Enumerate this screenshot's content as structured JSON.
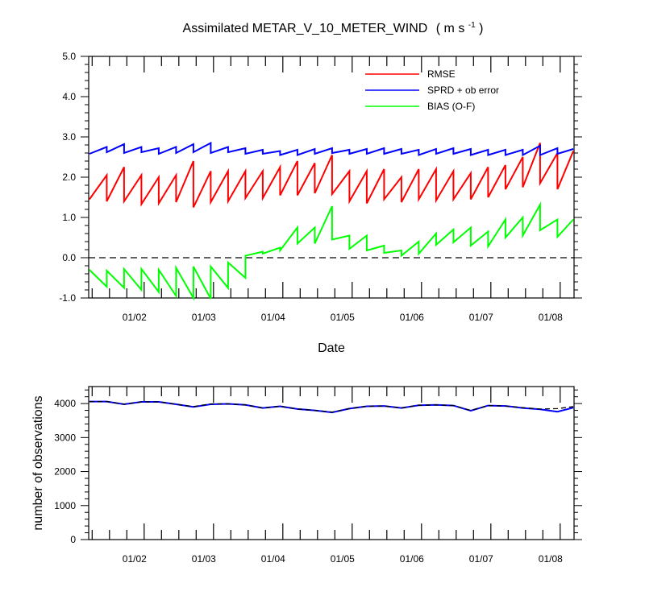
{
  "chart_data": [
    {
      "type": "line",
      "title": "Assimilated METAR_V_10_METER_WIND",
      "title_units": "( m s",
      "title_units_sup": "-1",
      "title_units_close": " )",
      "xlabel": "Date",
      "ylabel": "",
      "ylim": [
        -1.0,
        5.0
      ],
      "yticks": [
        -1.0,
        0.0,
        1.0,
        2.0,
        3.0,
        4.0,
        5.0
      ],
      "ytick_labels": [
        "-1.0",
        "0.0",
        "1.0",
        "2.0",
        "3.0",
        "4.0",
        "5.0"
      ],
      "xlim": [
        1.2,
        8.2
      ],
      "xticks": [
        2,
        3,
        4,
        5,
        6,
        7,
        8
      ],
      "xtick_labels": [
        "01/02",
        "01/03",
        "01/04",
        "01/05",
        "01/06",
        "01/07",
        "01/08"
      ],
      "grid": false,
      "legend_position": "top-right",
      "reference_line": 0.0,
      "series": [
        {
          "name": "RMSE",
          "color": "#ff0000",
          "x": [
            1.21,
            1.46,
            1.46,
            1.71,
            1.71,
            1.96,
            1.96,
            2.21,
            2.21,
            2.46,
            2.46,
            2.71,
            2.71,
            2.96,
            2.96,
            3.21,
            3.21,
            3.46,
            3.46,
            3.71,
            3.71,
            3.96,
            3.96,
            4.21,
            4.21,
            4.46,
            4.46,
            4.71,
            4.71,
            4.96,
            4.96,
            5.21,
            5.21,
            5.46,
            5.46,
            5.71,
            5.71,
            5.96,
            5.96,
            6.21,
            6.21,
            6.46,
            6.46,
            6.71,
            6.71,
            6.96,
            6.96,
            7.21,
            7.21,
            7.46,
            7.46,
            7.71,
            7.71,
            7.96,
            7.96,
            8.19
          ],
          "y": [
            1.45,
            2.05,
            1.4,
            2.25,
            1.4,
            2.05,
            1.33,
            2.0,
            1.35,
            2.05,
            1.38,
            2.4,
            1.25,
            2.15,
            1.38,
            2.15,
            1.4,
            2.15,
            1.48,
            2.15,
            1.48,
            2.25,
            1.55,
            2.4,
            1.55,
            2.35,
            1.6,
            2.55,
            1.58,
            2.15,
            1.4,
            2.15,
            1.35,
            2.2,
            1.45,
            2.0,
            1.38,
            2.2,
            1.45,
            2.2,
            1.42,
            2.15,
            1.45,
            2.1,
            1.45,
            2.25,
            1.5,
            2.3,
            1.7,
            2.5,
            1.75,
            2.85,
            1.85,
            2.6,
            1.7,
            2.65
          ]
        },
        {
          "name": "SPRD + ob error",
          "color": "#0000ff",
          "x": [
            1.21,
            1.46,
            1.46,
            1.71,
            1.71,
            1.96,
            1.96,
            2.21,
            2.21,
            2.46,
            2.46,
            2.71,
            2.71,
            2.96,
            2.96,
            3.21,
            3.21,
            3.46,
            3.46,
            3.71,
            3.71,
            3.96,
            3.96,
            4.21,
            4.21,
            4.46,
            4.46,
            4.71,
            4.71,
            4.96,
            4.96,
            5.21,
            5.21,
            5.46,
            5.46,
            5.71,
            5.71,
            5.96,
            5.96,
            6.21,
            6.21,
            6.46,
            6.46,
            6.71,
            6.71,
            6.96,
            6.96,
            7.21,
            7.21,
            7.46,
            7.46,
            7.71,
            7.71,
            7.96,
            7.96,
            8.19
          ],
          "y": [
            2.58,
            2.75,
            2.62,
            2.82,
            2.6,
            2.75,
            2.62,
            2.72,
            2.58,
            2.75,
            2.6,
            2.82,
            2.62,
            2.85,
            2.6,
            2.75,
            2.62,
            2.72,
            2.58,
            2.68,
            2.58,
            2.65,
            2.55,
            2.68,
            2.55,
            2.7,
            2.58,
            2.72,
            2.6,
            2.68,
            2.58,
            2.7,
            2.58,
            2.72,
            2.58,
            2.7,
            2.58,
            2.68,
            2.55,
            2.7,
            2.58,
            2.72,
            2.58,
            2.7,
            2.55,
            2.68,
            2.55,
            2.68,
            2.55,
            2.68,
            2.55,
            2.78,
            2.55,
            2.72,
            2.58,
            2.7
          ]
        },
        {
          "name": "BIAS (O-F)",
          "color": "#00ff00",
          "x": [
            1.21,
            1.46,
            1.46,
            1.71,
            1.71,
            1.96,
            1.96,
            2.21,
            2.21,
            2.46,
            2.46,
            2.71,
            2.71,
            2.96,
            2.96,
            3.21,
            3.21,
            3.46,
            3.46,
            3.71,
            3.71,
            3.96,
            3.96,
            4.21,
            4.21,
            4.46,
            4.46,
            4.71,
            4.71,
            4.96,
            4.96,
            5.21,
            5.21,
            5.46,
            5.46,
            5.71,
            5.71,
            5.96,
            5.96,
            6.21,
            6.21,
            6.46,
            6.46,
            6.71,
            6.71,
            6.96,
            6.96,
            7.21,
            7.21,
            7.46,
            7.46,
            7.71,
            7.71,
            7.96,
            7.96,
            8.19
          ],
          "y": [
            -0.3,
            -0.72,
            -0.32,
            -0.75,
            -0.28,
            -0.8,
            -0.28,
            -0.85,
            -0.3,
            -0.95,
            -0.25,
            -1.0,
            -0.22,
            -1.02,
            -0.22,
            -0.75,
            -0.12,
            -0.5,
            0.05,
            0.15,
            0.1,
            0.25,
            0.18,
            0.75,
            0.35,
            0.75,
            0.35,
            1.28,
            0.45,
            0.55,
            0.22,
            0.55,
            0.18,
            0.3,
            0.12,
            0.18,
            0.05,
            0.4,
            0.1,
            0.6,
            0.32,
            0.7,
            0.38,
            0.75,
            0.3,
            0.65,
            0.28,
            0.95,
            0.5,
            1.0,
            0.55,
            1.32,
            0.68,
            0.95,
            0.52,
            0.95
          ]
        }
      ]
    },
    {
      "type": "line",
      "title": "",
      "xlabel": "",
      "ylabel": "number of observations",
      "ylim": [
        0,
        4500
      ],
      "yticks": [
        0,
        1000,
        2000,
        3000,
        4000
      ],
      "ytick_labels": [
        "0",
        "1000",
        "2000",
        "3000",
        "4000"
      ],
      "xlim": [
        1.2,
        8.2
      ],
      "xticks": [
        2,
        3,
        4,
        5,
        6,
        7,
        8
      ],
      "xtick_labels": [
        "01/02",
        "01/03",
        "01/04",
        "01/05",
        "01/06",
        "01/07",
        "01/08"
      ],
      "grid": false,
      "series": [
        {
          "name": "",
          "style": "solid",
          "color": "#0000ff",
          "x": [
            1.21,
            1.46,
            1.71,
            1.96,
            2.21,
            2.46,
            2.71,
            2.96,
            3.21,
            3.46,
            3.71,
            3.96,
            4.21,
            4.46,
            4.71,
            4.96,
            5.21,
            5.46,
            5.71,
            5.96,
            6.21,
            6.46,
            6.71,
            6.96,
            7.21,
            7.46,
            7.71,
            7.96,
            8.19
          ],
          "y": [
            4060,
            4060,
            3980,
            4050,
            4050,
            3980,
            3900,
            3980,
            3990,
            3960,
            3870,
            3920,
            3840,
            3800,
            3740,
            3850,
            3920,
            3930,
            3870,
            3950,
            3960,
            3940,
            3790,
            3940,
            3930,
            3870,
            3830,
            3760,
            3880
          ]
        },
        {
          "name": "",
          "style": "dashed",
          "color": "#000000",
          "x": [
            1.21,
            1.46,
            1.71,
            1.96,
            2.21,
            2.46,
            2.71,
            2.96,
            3.21,
            3.46,
            3.71,
            3.96,
            4.21,
            4.46,
            4.71,
            4.96,
            5.21,
            5.46,
            5.71,
            5.96,
            6.21,
            6.46,
            6.71,
            6.96,
            7.21,
            7.46,
            7.71,
            7.96,
            8.19
          ],
          "y": [
            4060,
            4060,
            3980,
            4050,
            4050,
            3980,
            3910,
            3990,
            3990,
            3960,
            3870,
            3920,
            3840,
            3800,
            3750,
            3850,
            3920,
            3930,
            3870,
            3950,
            3960,
            3940,
            3800,
            3940,
            3930,
            3880,
            3840,
            3850,
            3910
          ]
        }
      ]
    }
  ]
}
